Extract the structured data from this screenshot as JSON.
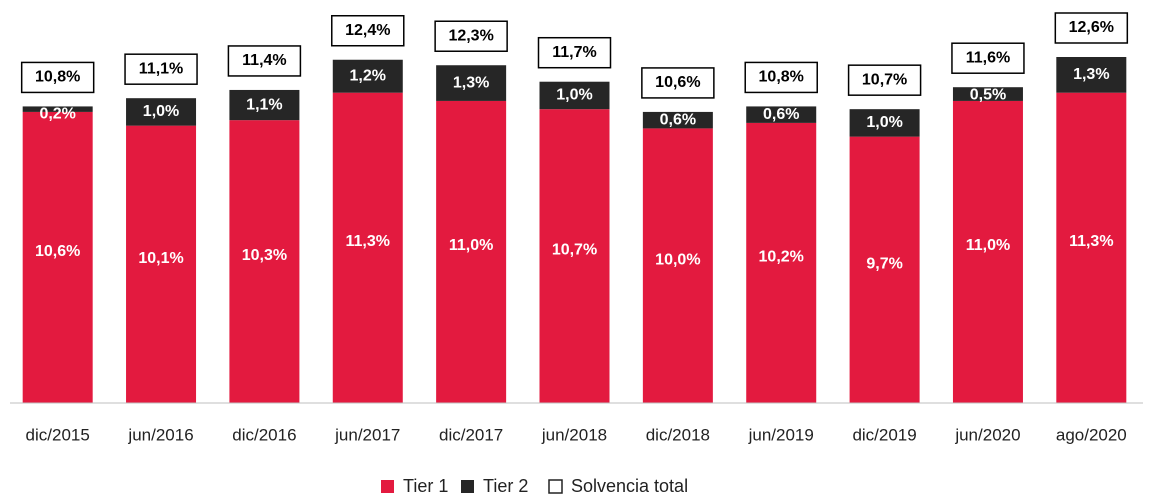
{
  "chart_data": {
    "type": "stacked_bar",
    "categories": [
      "dic/2015",
      "jun/2016",
      "dic/2016",
      "jun/2017",
      "dic/2017",
      "jun/2018",
      "dic/2018",
      "jun/2019",
      "dic/2019",
      "jun/2020",
      "ago/2020"
    ],
    "series": [
      {
        "name": "Tier 1",
        "color": "#e31a3f",
        "values": [
          10.6,
          10.1,
          10.3,
          11.3,
          11.0,
          10.7,
          10.0,
          10.2,
          9.7,
          11.0,
          11.3
        ],
        "value_labels": [
          "10,6%",
          "10,1%",
          "10,3%",
          "11,3%",
          "11,0%",
          "10,7%",
          "10,0%",
          "10,2%",
          "9,7%",
          "11,0%",
          "11,3%"
        ]
      },
      {
        "name": "Tier 2",
        "color": "#262626",
        "values": [
          0.2,
          1.0,
          1.1,
          1.2,
          1.3,
          1.0,
          0.6,
          0.6,
          1.0,
          0.5,
          1.3
        ],
        "value_labels": [
          "0,2%",
          "1,0%",
          "1,1%",
          "1,2%",
          "1,3%",
          "1,0%",
          "0,6%",
          "0,6%",
          "1,0%",
          "0,5%",
          "1,3%"
        ]
      },
      {
        "name": "Solvencia total",
        "color": "#ffffff",
        "values": [
          10.8,
          11.1,
          11.4,
          12.4,
          12.3,
          11.7,
          10.6,
          10.8,
          10.7,
          11.6,
          12.6
        ],
        "value_labels": [
          "10,8%",
          "11,1%",
          "11,4%",
          "12,4%",
          "12,3%",
          "11,7%",
          "10,6%",
          "10,8%",
          "10,7%",
          "11,6%",
          "12,6%"
        ]
      }
    ]
  }
}
